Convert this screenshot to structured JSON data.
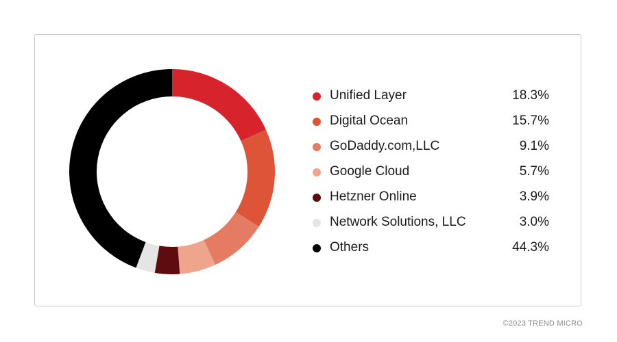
{
  "chart_data": {
    "type": "pie",
    "variant": "donut",
    "categories": [
      "Unified Layer",
      "Digital Ocean",
      "GoDaddy.com,LLC",
      "Google Cloud",
      "Hetzner Online",
      "Network Solutions, LLC",
      "Others"
    ],
    "values": [
      18.3,
      15.7,
      9.1,
      5.7,
      3.9,
      3.0,
      44.3
    ],
    "value_labels": [
      "18.3%",
      "15.7%",
      "9.1%",
      "5.7%",
      "3.9%",
      "3.0%",
      "44.3%"
    ],
    "colors": [
      "#d7232b",
      "#de5439",
      "#e57b63",
      "#efa58b",
      "#5e0c0f",
      "#e5e5e4",
      "#000000"
    ],
    "legend_position": "right",
    "start_angle": "top, clockwise"
  },
  "footer": {
    "copyright": "©2023 TREND MICRO"
  }
}
